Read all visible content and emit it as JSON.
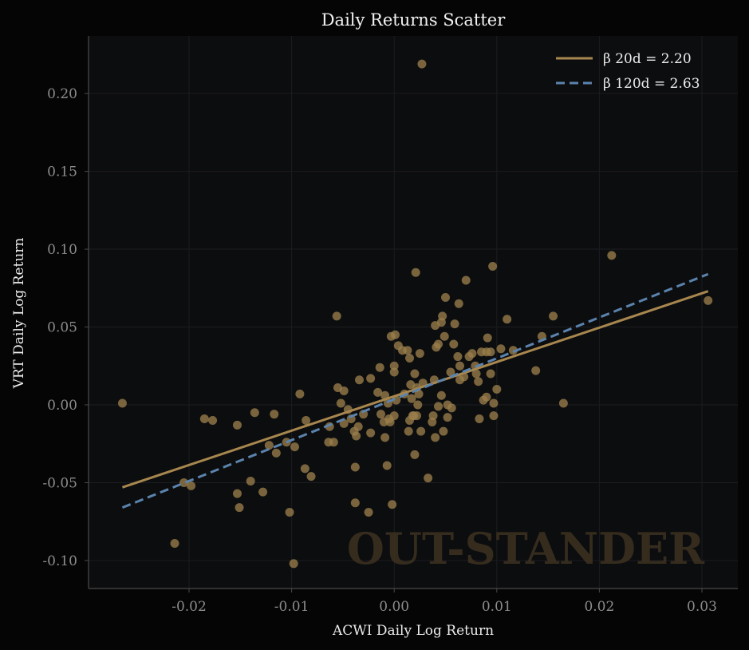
{
  "chart_data": {
    "type": "scatter",
    "title": "Daily Returns Scatter",
    "xlabel": "ACWI Daily Log Return",
    "ylabel": "VRT Daily Log Return",
    "xlim": [
      -0.0298,
      0.0335
    ],
    "ylim": [
      -0.118,
      0.237
    ],
    "x_ticks": [
      -0.02,
      -0.01,
      0.0,
      0.01,
      0.02,
      0.03
    ],
    "x_tick_labels": [
      "-0.02",
      "-0.01",
      "0.00",
      "0.01",
      "0.02",
      "0.03"
    ],
    "y_ticks": [
      -0.1,
      -0.05,
      0.0,
      0.05,
      0.1,
      0.15,
      0.2
    ],
    "y_tick_labels": [
      "-0.10",
      "-0.05",
      "0.00",
      "0.05",
      "0.10",
      "0.15",
      "0.20"
    ],
    "grid": true,
    "legend_position": "top-right",
    "watermark": "OUT-STANDER",
    "colors": {
      "background": "#050505",
      "plot_bg": "#0c0d0f",
      "points": "#9a7d4a",
      "line_20d": "#a8874f",
      "line_120d": "#5b83ad",
      "grid": "#1c1d20",
      "spine": "#4a4a4a"
    },
    "series": [
      {
        "name": "Daily returns",
        "kind": "points",
        "points": [
          [
            -0.0265,
            0.001
          ],
          [
            -0.0185,
            -0.009
          ],
          [
            -0.0177,
            -0.01
          ],
          [
            -0.0153,
            -0.013
          ],
          [
            -0.0136,
            -0.005
          ],
          [
            -0.0117,
            -0.006
          ],
          [
            -0.0205,
            -0.05
          ],
          [
            -0.0198,
            -0.052
          ],
          [
            -0.0214,
            -0.089
          ],
          [
            -0.0153,
            -0.057
          ],
          [
            -0.0151,
            -0.066
          ],
          [
            -0.014,
            -0.049
          ],
          [
            -0.0128,
            -0.056
          ],
          [
            -0.0122,
            -0.026
          ],
          [
            -0.0115,
            -0.031
          ],
          [
            -0.0105,
            -0.024
          ],
          [
            -0.0102,
            -0.069
          ],
          [
            -0.0098,
            -0.102
          ],
          [
            -0.0097,
            -0.027
          ],
          [
            -0.0092,
            0.007
          ],
          [
            -0.0087,
            -0.041
          ],
          [
            -0.0086,
            -0.01
          ],
          [
            -0.0081,
            -0.046
          ],
          [
            -0.0064,
            -0.024
          ],
          [
            -0.0063,
            -0.014
          ],
          [
            -0.0059,
            -0.024
          ],
          [
            -0.0056,
            0.057
          ],
          [
            -0.0055,
            0.011
          ],
          [
            -0.0052,
            0.001
          ],
          [
            -0.0049,
            0.009
          ],
          [
            -0.0049,
            -0.012
          ],
          [
            -0.0045,
            -0.003
          ],
          [
            -0.0042,
            -0.009
          ],
          [
            -0.0039,
            -0.017
          ],
          [
            -0.0038,
            -0.04
          ],
          [
            -0.0038,
            -0.063
          ],
          [
            -0.0037,
            -0.02
          ],
          [
            -0.0035,
            -0.014
          ],
          [
            -0.0034,
            0.016
          ],
          [
            -0.003,
            -0.006
          ],
          [
            -0.0025,
            -0.069
          ],
          [
            -0.0023,
            -0.018
          ],
          [
            -0.0023,
            0.017
          ],
          [
            -0.0016,
            0.008
          ],
          [
            -0.0014,
            0.024
          ],
          [
            -0.0013,
            -0.006
          ],
          [
            -0.001,
            -0.011
          ],
          [
            -0.0009,
            -0.021
          ],
          [
            -0.0009,
            0.006
          ],
          [
            -0.0007,
            -0.039
          ],
          [
            -0.0006,
            0.001
          ],
          [
            -0.0005,
            -0.009
          ],
          [
            -0.0004,
            -0.011
          ],
          [
            -0.0003,
            0.044
          ],
          [
            -0.0002,
            -0.064
          ],
          [
            0.0,
            0.025
          ],
          [
            0.0,
            0.021
          ],
          [
            0.0,
            -0.007
          ],
          [
            0.0001,
            0.045
          ],
          [
            0.0002,
            0.003
          ],
          [
            0.0004,
            0.038
          ],
          [
            0.0008,
            0.035
          ],
          [
            0.001,
            0.007
          ],
          [
            0.0013,
            0.035
          ],
          [
            0.0014,
            -0.017
          ],
          [
            0.0015,
            -0.01
          ],
          [
            0.0015,
            0.03
          ],
          [
            0.0016,
            0.013
          ],
          [
            0.0017,
            0.004
          ],
          [
            0.0018,
            -0.007
          ],
          [
            0.0019,
            -0.007
          ],
          [
            0.002,
            0.02
          ],
          [
            0.002,
            -0.032
          ],
          [
            0.0021,
            0.085
          ],
          [
            0.0022,
            -0.007
          ],
          [
            0.0022,
            0.011
          ],
          [
            0.0023,
            0.0
          ],
          [
            0.0024,
            0.007
          ],
          [
            0.0025,
            0.033
          ],
          [
            0.0026,
            -0.017
          ],
          [
            0.0027,
            0.219
          ],
          [
            0.0028,
            0.014
          ],
          [
            0.0033,
            -0.047
          ],
          [
            0.0037,
            -0.011
          ],
          [
            0.0038,
            -0.007
          ],
          [
            0.0039,
            0.016
          ],
          [
            0.004,
            -0.021
          ],
          [
            0.004,
            0.051
          ],
          [
            0.0041,
            0.037
          ],
          [
            0.0043,
            0.039
          ],
          [
            0.0043,
            -0.001
          ],
          [
            0.0046,
            0.006
          ],
          [
            0.0046,
            0.053
          ],
          [
            0.0047,
            0.057
          ],
          [
            0.0048,
            -0.017
          ],
          [
            0.0049,
            0.044
          ],
          [
            0.005,
            0.069
          ],
          [
            0.0052,
            -0.008
          ],
          [
            0.0052,
            0.0
          ],
          [
            0.0055,
            0.021
          ],
          [
            0.0056,
            -0.002
          ],
          [
            0.0058,
            0.039
          ],
          [
            0.0059,
            0.052
          ],
          [
            0.0062,
            0.031
          ],
          [
            0.0063,
            0.065
          ],
          [
            0.0064,
            0.016
          ],
          [
            0.0064,
            0.025
          ],
          [
            0.0068,
            0.018
          ],
          [
            0.007,
            0.08
          ],
          [
            0.0073,
            0.031
          ],
          [
            0.0076,
            0.033
          ],
          [
            0.0079,
            0.025
          ],
          [
            0.008,
            0.02
          ],
          [
            0.0082,
            0.015
          ],
          [
            0.0083,
            -0.009
          ],
          [
            0.0085,
            0.034
          ],
          [
            0.0087,
            0.003
          ],
          [
            0.009,
            0.005
          ],
          [
            0.009,
            0.034
          ],
          [
            0.0091,
            0.043
          ],
          [
            0.0094,
            0.02
          ],
          [
            0.0094,
            0.034
          ],
          [
            0.0096,
            0.089
          ],
          [
            0.0097,
            -0.007
          ],
          [
            0.0097,
            0.001
          ],
          [
            0.01,
            0.01
          ],
          [
            0.0104,
            0.036
          ],
          [
            0.011,
            0.055
          ],
          [
            0.0116,
            0.035
          ],
          [
            0.0138,
            0.022
          ],
          [
            0.0144,
            0.044
          ],
          [
            0.0155,
            0.057
          ],
          [
            0.0165,
            0.001
          ],
          [
            0.0212,
            0.096
          ],
          [
            0.0306,
            0.067
          ]
        ]
      },
      {
        "name": "β 20d = 2.20",
        "kind": "line",
        "style": "solid",
        "x": [
          -0.0265,
          0.0306
        ],
        "y": [
          -0.053,
          0.073
        ]
      },
      {
        "name": "β 120d = 2.63",
        "kind": "line",
        "style": "dashed",
        "x": [
          -0.0265,
          0.0306
        ],
        "y": [
          -0.066,
          0.084
        ]
      }
    ],
    "legend": [
      {
        "label": "β 20d = 2.20",
        "style": "solid"
      },
      {
        "label": "β 120d = 2.63",
        "style": "dashed"
      }
    ]
  }
}
